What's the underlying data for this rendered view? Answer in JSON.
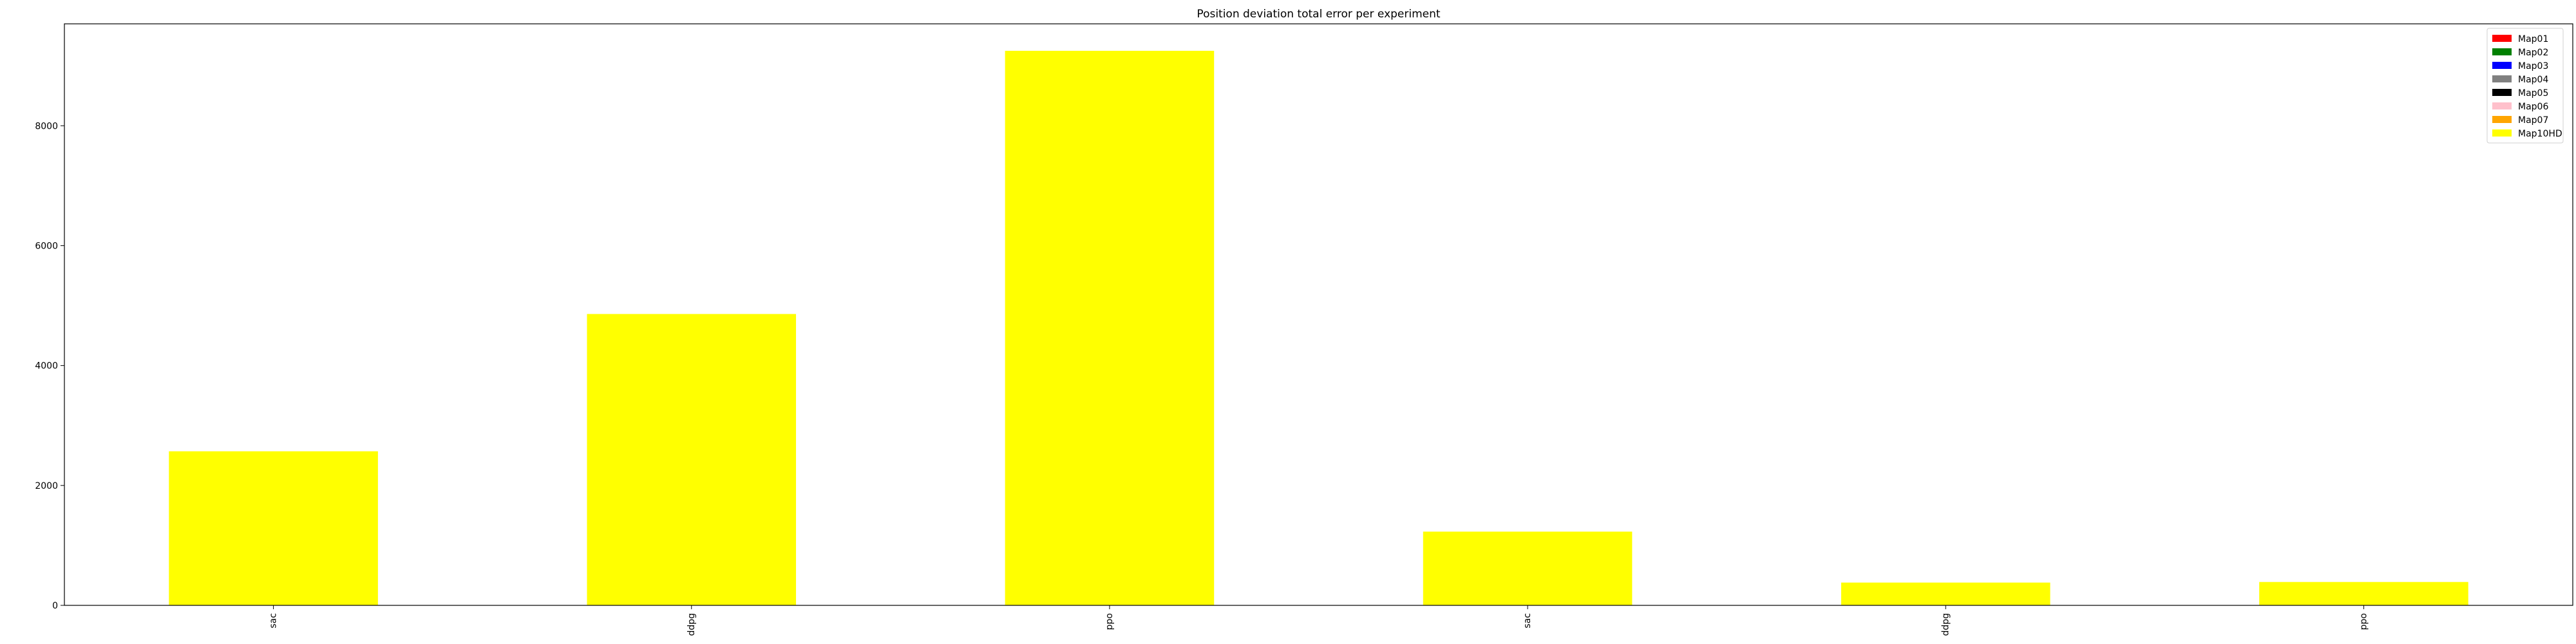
{
  "chart_data": {
    "type": "bar",
    "title": "Position deviation total error per experiment",
    "xlabel": "",
    "ylabel": "",
    "categories": [
      "sac",
      "ddpg",
      "ppo",
      "sac",
      "ddpg",
      "ppo"
    ],
    "series": [
      {
        "name": "Map01",
        "color": "#ff0000",
        "values": [
          null,
          null,
          null,
          null,
          null,
          null
        ]
      },
      {
        "name": "Map02",
        "color": "#008000",
        "values": [
          null,
          null,
          null,
          null,
          null,
          null
        ]
      },
      {
        "name": "Map03",
        "color": "#0000ff",
        "values": [
          null,
          null,
          null,
          null,
          null,
          null
        ]
      },
      {
        "name": "Map04",
        "color": "#808080",
        "values": [
          null,
          null,
          null,
          null,
          null,
          null
        ]
      },
      {
        "name": "Map05",
        "color": "#000000",
        "values": [
          null,
          null,
          null,
          null,
          null,
          null
        ]
      },
      {
        "name": "Map06",
        "color": "#ffc0cb",
        "values": [
          null,
          null,
          null,
          null,
          null,
          null
        ]
      },
      {
        "name": "Map07",
        "color": "#ffa500",
        "values": [
          null,
          null,
          null,
          null,
          null,
          null
        ]
      },
      {
        "name": "Map10HD",
        "color": "#ffff00",
        "values": [
          2570,
          4860,
          9250,
          1230,
          380,
          390
        ]
      }
    ],
    "yticks": [
      0,
      2000,
      4000,
      6000,
      8000
    ],
    "ylim": [
      0,
      9700
    ],
    "grid": false,
    "legend_position": "top-right"
  }
}
